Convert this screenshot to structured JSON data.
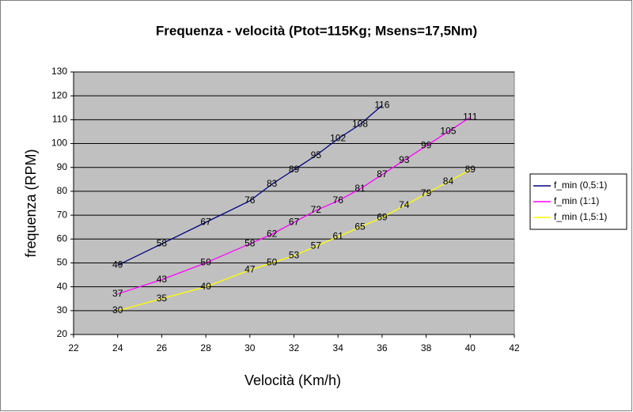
{
  "chart_data": {
    "type": "line",
    "title": "Frequenza - velocità (Ptot=115Kg; Msens=17,5Nm)",
    "xlabel": "Velocità (Km/h)",
    "ylabel": "frequenza (RPM)",
    "xlim": [
      22,
      42
    ],
    "xticks": [
      22,
      24,
      26,
      28,
      30,
      32,
      34,
      36,
      38,
      40,
      42
    ],
    "ylim": [
      20,
      130
    ],
    "yticks": [
      20,
      30,
      40,
      50,
      60,
      70,
      80,
      90,
      100,
      110,
      120,
      130
    ],
    "grid": true,
    "legend": "right",
    "series": [
      {
        "name": "f_min (0,5:1)",
        "color": "#000080",
        "x": [
          24,
          26,
          28,
          30,
          31,
          32,
          33,
          34,
          35,
          36
        ],
        "values": [
          49,
          58,
          67,
          76,
          83,
          89,
          95,
          102,
          108,
          116
        ]
      },
      {
        "name": "f_min (1:1)",
        "color": "#ff00ff",
        "x": [
          24,
          26,
          28,
          30,
          31,
          32,
          33,
          34,
          35,
          36,
          37,
          38,
          39,
          40
        ],
        "values": [
          37,
          43,
          50,
          58,
          62,
          67,
          72,
          76,
          81,
          87,
          93,
          99,
          105,
          111
        ]
      },
      {
        "name": "f_min (1,5:1)",
        "color": "#ffff00",
        "x": [
          24,
          26,
          28,
          30,
          31,
          32,
          33,
          34,
          35,
          36,
          37,
          38,
          39,
          40
        ],
        "values": [
          30,
          35,
          40,
          47,
          50,
          53,
          57,
          61,
          65,
          69,
          74,
          79,
          84,
          89
        ]
      }
    ]
  }
}
